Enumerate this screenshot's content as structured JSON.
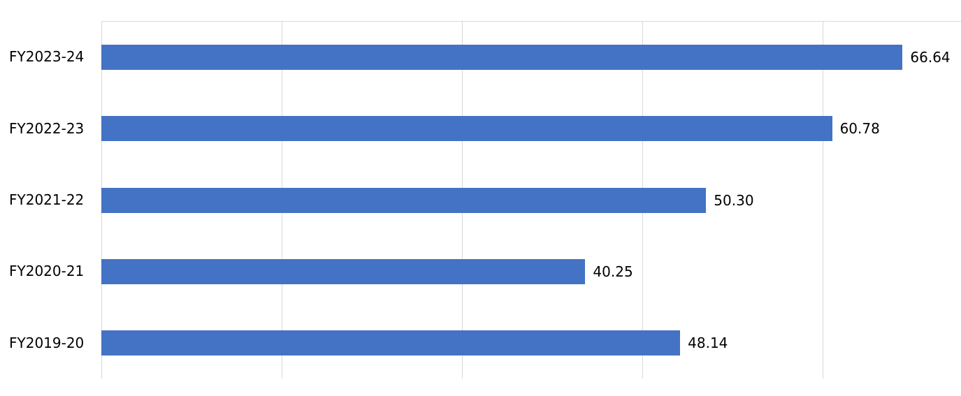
{
  "chart_data": {
    "type": "bar",
    "orientation": "horizontal",
    "title": "",
    "xlabel": "",
    "ylabel": "",
    "categories": [
      "FY2023-24",
      "FY2022-23",
      "FY2021-22",
      "FY2020-21",
      "FY2019-20"
    ],
    "values": [
      66.64,
      60.78,
      50.3,
      40.25,
      48.14
    ],
    "value_labels": [
      "66.64",
      "60.78",
      "50.30",
      "40.25",
      "48.14"
    ],
    "xlim": [
      0,
      71.5
    ],
    "gridlines_x": [
      0,
      15,
      30,
      45,
      60
    ],
    "grid": true,
    "legend": false,
    "bar_color": "#4472C4",
    "gridline_color": "#d9d9d9",
    "background": "#ffffff",
    "label_color": "#000000"
  }
}
